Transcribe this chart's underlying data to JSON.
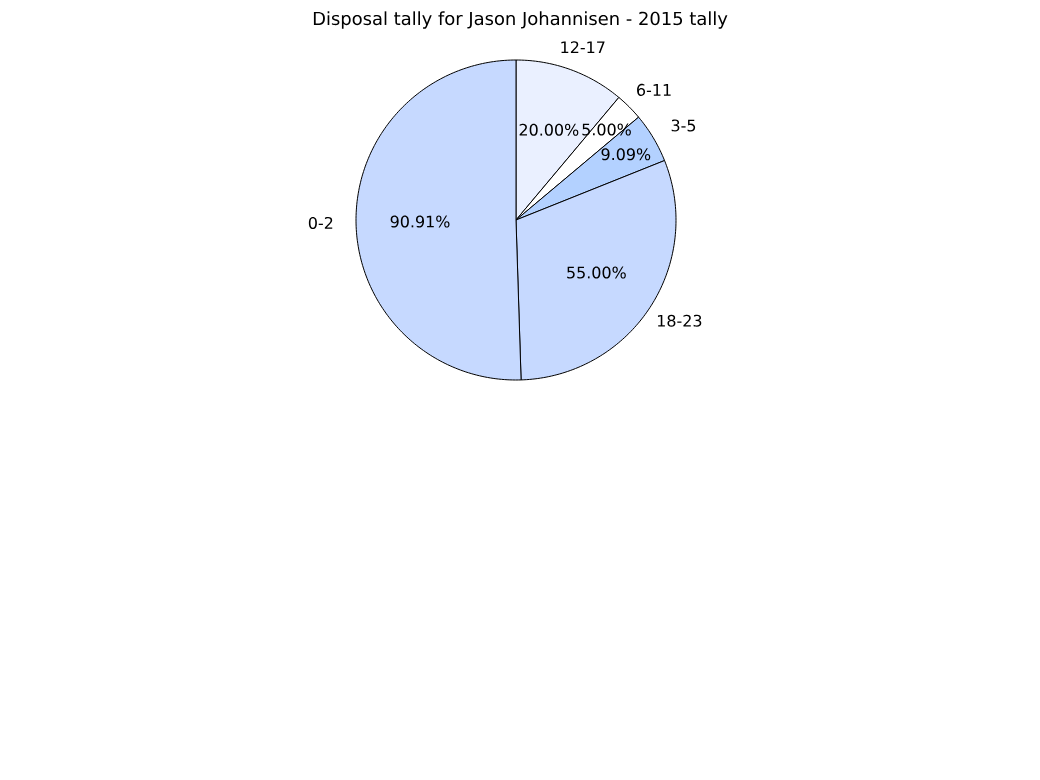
{
  "chart_data": {
    "type": "pie",
    "title": "Disposal tally for Jason Johannisen - 2015 tally",
    "categories": [
      "12-17",
      "6-11",
      "3-5",
      "18-23",
      "0-2"
    ],
    "values": [
      20.0,
      5.0,
      9.09,
      55.0,
      90.91
    ],
    "value_labels": [
      "20.00%",
      "5.00%",
      "9.09%",
      "55.00%",
      "90.91%"
    ],
    "colors": [
      "#eaf0ff",
      "#ffffff",
      "#b3d1ff",
      "#c6d9ff",
      "#c6d9ff"
    ],
    "legend": false
  }
}
